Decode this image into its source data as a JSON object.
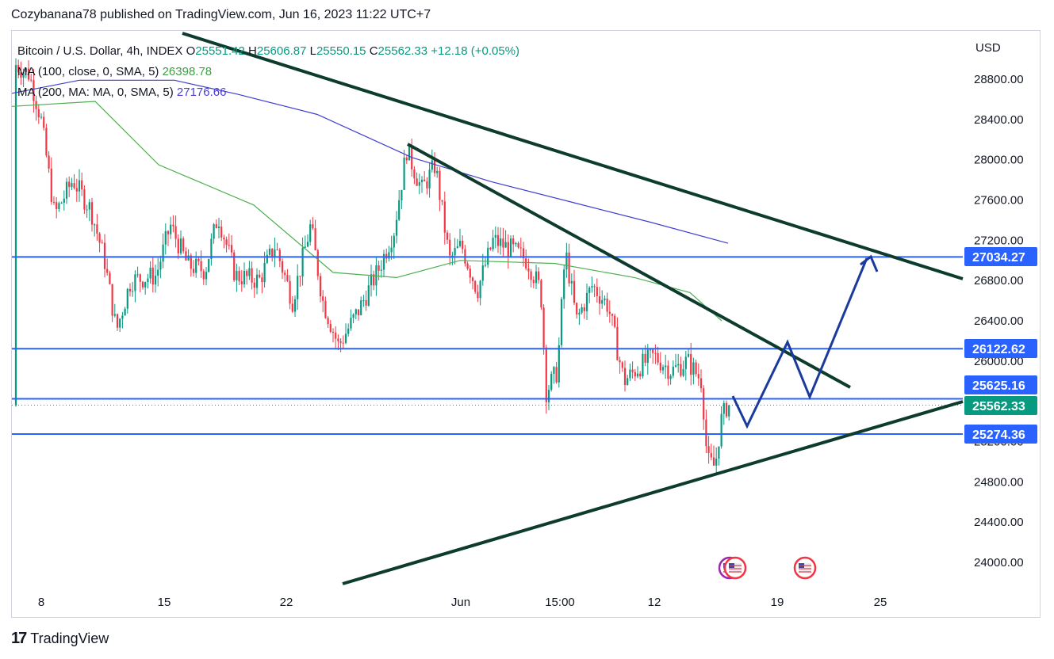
{
  "header": {
    "publisher_line": "Cozybanana78 published on TradingView.com, Jun 16, 2023 11:22 UTC+7"
  },
  "legend": {
    "symbol": "Bitcoin / U.S. Dollar, 4h, INDEX",
    "open_label": "O",
    "open": "25551.42",
    "high_label": "H",
    "high": "25606.87",
    "low_label": "L",
    "low": "25550.15",
    "close_label": "C",
    "close": "25562.33",
    "change": "+12.18 (+0.05%)",
    "ma100_label": "MA (100, close, 0, SMA, 5)",
    "ma100_value": "26398.78",
    "ma200_label": "MA (200, MA: MA, 0, SMA, 5)",
    "ma200_value": "27176.66"
  },
  "currency": "USD",
  "footer": {
    "logo_text": "TradingView",
    "logo_mark": "17"
  },
  "colors": {
    "up": "#089981",
    "down": "#f23645",
    "ma100": "#4caf50",
    "ma200": "#3f3fd0",
    "level": "#2962ff",
    "trend": "#0d3b2e",
    "projection": "#1a3a9e"
  },
  "chart_data": {
    "type": "candlestick",
    "title": "Bitcoin / U.S. Dollar, 4h, INDEX",
    "y_axis_ticks": [
      "28800.00",
      "28400.00",
      "28000.00",
      "27600.00",
      "27200.00",
      "26800.00",
      "26400.00",
      "26000.00",
      "25600.00",
      "25200.00",
      "24800.00",
      "24400.00",
      "24000.00"
    ],
    "x_axis_ticks": [
      "8",
      "15",
      "22",
      "Jun",
      "15:00",
      "12",
      "19",
      "25"
    ],
    "ylim": [
      23800,
      29200
    ],
    "price_labels": [
      {
        "name": "level-27034",
        "value": "27034.27",
        "kind": "level"
      },
      {
        "name": "level-26122",
        "value": "26122.62",
        "kind": "level"
      },
      {
        "name": "level-25625",
        "value": "25625.16",
        "kind": "level"
      },
      {
        "name": "last-price",
        "value": "25562.33",
        "kind": "last"
      },
      {
        "name": "level-25274",
        "value": "25274.36",
        "kind": "level"
      }
    ],
    "horizontal_levels": [
      27034.27,
      26122.62,
      25625.16,
      25274.36
    ],
    "last_price": 25562.33,
    "ma100_level_last": 26398.78,
    "ma200_level_last": 27176.66
  }
}
